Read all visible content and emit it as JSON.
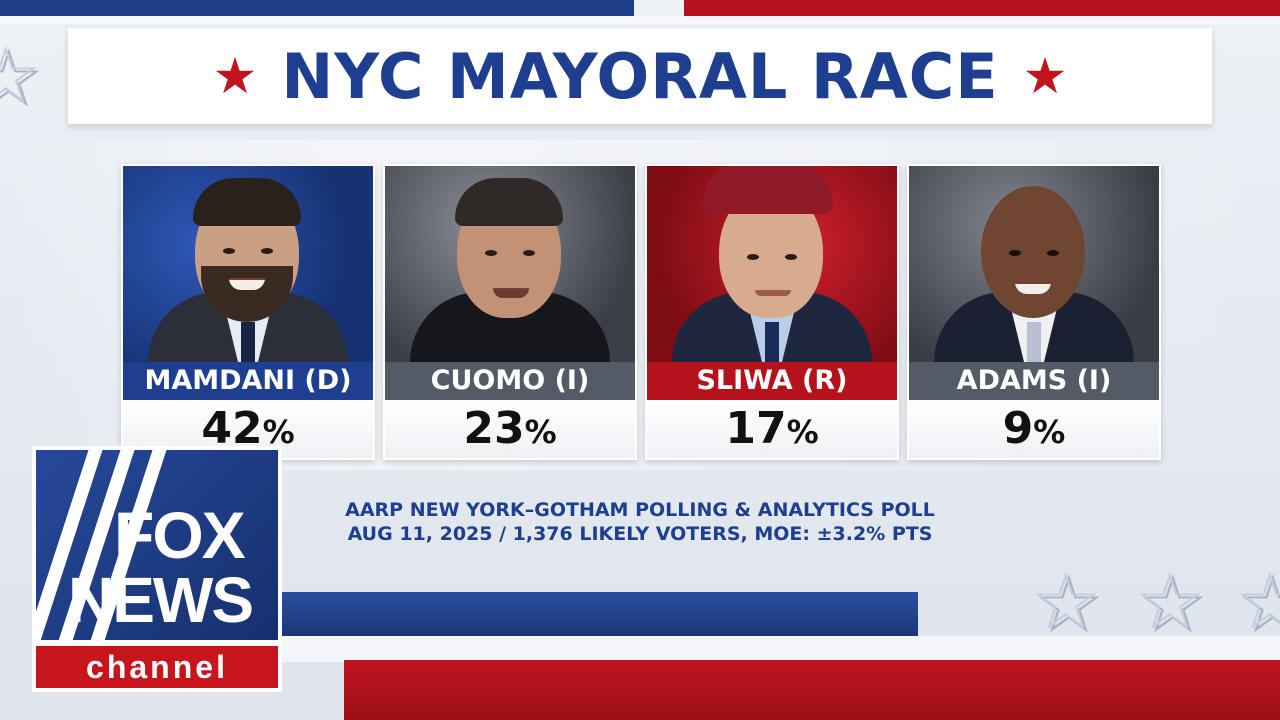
{
  "title": "NYC MAYORAL RACE",
  "title_star": "★",
  "candidates": [
    {
      "name": "MAMDANI (D)",
      "percent": "42",
      "unit": "%",
      "party_color": "#1e3f8f"
    },
    {
      "name": "CUOMO (I)",
      "percent": "23",
      "unit": "%",
      "party_color": "#555b66"
    },
    {
      "name": "SLIWA (R)",
      "percent": "17",
      "unit": "%",
      "party_color": "#b5121b"
    },
    {
      "name": "ADAMS (I)",
      "percent": "9",
      "unit": "%",
      "party_color": "#555b66"
    }
  ],
  "poll": {
    "line1": "AARP NEW YORK–GOTHAM POLLING & ANALYTICS POLL",
    "line2": "AUG 11, 2025 / 1,376 LIKELY VOTERS, MOE: ±3.2% PTS"
  },
  "logo": {
    "top": "FOX",
    "middle": "NEWS",
    "bottom": "channel"
  },
  "colors": {
    "accent_blue": "#1e3f8f",
    "accent_red": "#c0141e"
  }
}
